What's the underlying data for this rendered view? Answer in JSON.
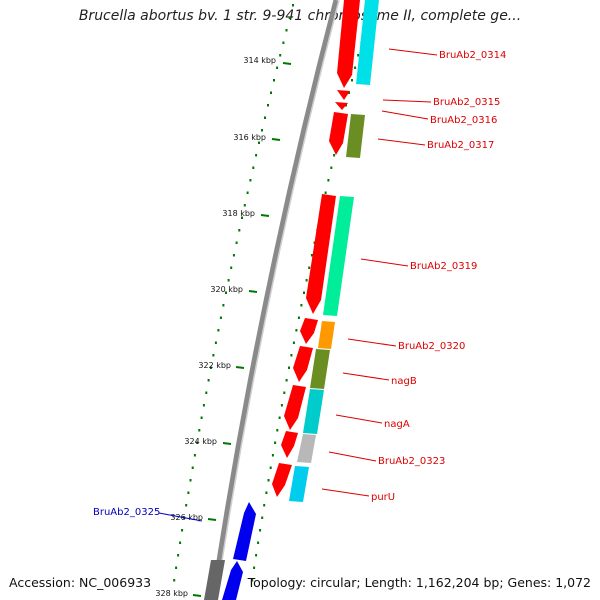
{
  "title": "Brucella abortus bv. 1 str. 9-941 chromosome II, complete ge...",
  "footer": {
    "accession": "Accession: NC_006933",
    "topology": "Topology: circular; Length: 1,162,204 bp; Genes: 1,072"
  },
  "ticks": [
    {
      "label": "314 kbp"
    },
    {
      "label": "316 kbp"
    },
    {
      "label": "318 kbp"
    },
    {
      "label": "320 kbp"
    },
    {
      "label": "322 kbp"
    },
    {
      "label": "324 kbp"
    },
    {
      "label": "326 kbp"
    },
    {
      "label": "328 kbp"
    }
  ],
  "gene_labels": [
    {
      "text": "BruAb2_0314",
      "color": "#dd0000"
    },
    {
      "text": "BruAb2_0315",
      "color": "#dd0000"
    },
    {
      "text": "BruAb2_0316",
      "color": "#dd0000"
    },
    {
      "text": "BruAb2_0317",
      "color": "#dd0000"
    },
    {
      "text": "BruAb2_0319",
      "color": "#dd0000"
    },
    {
      "text": "BruAb2_0320",
      "color": "#dd0000"
    },
    {
      "text": "nagB",
      "color": "#dd0000"
    },
    {
      "text": "nagA",
      "color": "#dd0000"
    },
    {
      "text": "BruAb2_0323",
      "color": "#dd0000"
    },
    {
      "text": "purU",
      "color": "#dd0000"
    },
    {
      "text": "BruAb2_0325",
      "color": "#0000bb"
    }
  ],
  "colors": {
    "forward_gene": "#ff0000",
    "reverse_gene": "#0000ee",
    "backbone": "#888888",
    "gc_skew": "#007700"
  }
}
